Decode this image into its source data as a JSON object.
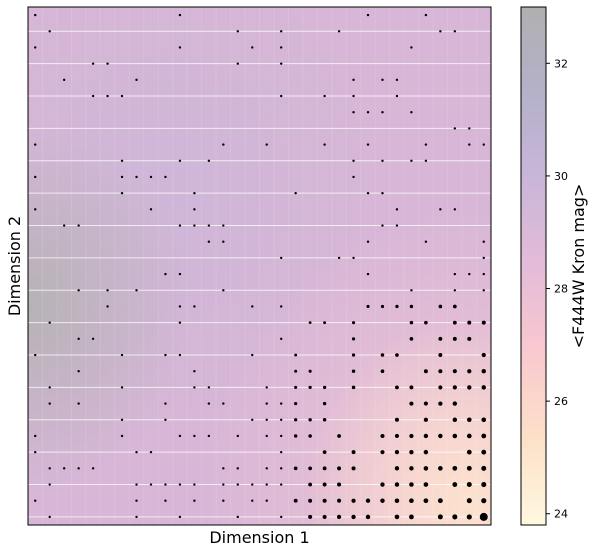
{
  "chart_data": {
    "type": "heatmap",
    "title": "",
    "xlabel": "Dimension 1",
    "ylabel": "Dimension 2",
    "grid": false,
    "colorbar": {
      "label": "<F444W Kron mag>",
      "range": [
        23.8,
        33.0
      ],
      "ticks": [
        24,
        26,
        28,
        30,
        32
      ],
      "tick_labels": [
        "24",
        "26",
        "28",
        "30",
        "32"
      ],
      "colors": [
        "#fff8e0",
        "#fde0c8",
        "#f9c9cf",
        "#e4bcd8",
        "#c9b6d9",
        "#b4b1c9",
        "#b0b0b0"
      ]
    },
    "grid_size": [
      32,
      32
    ],
    "layer_colors": [
      "#d7b6d7",
      "#c9b6d8",
      "#f3c6d3",
      "#fde2ce",
      "#b2b2b2"
    ],
    "marker_color": "#000000"
  }
}
